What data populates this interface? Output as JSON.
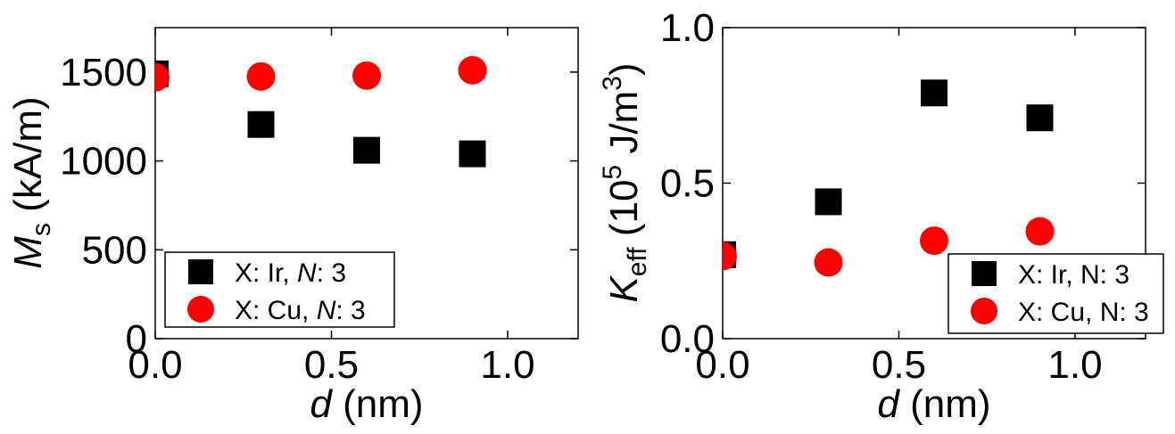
{
  "chart_data": [
    {
      "type": "scatter",
      "xlabel": {
        "italic": "d",
        "rest": " (nm)"
      },
      "ylabel": {
        "main": "M",
        "sub": "s",
        "rest": " (kA/m)"
      },
      "xlim": [
        0,
        1.2
      ],
      "ylim": [
        0,
        1750
      ],
      "xticks": [
        {
          "value": 0.0,
          "label": "0.0"
        },
        {
          "value": 0.5,
          "label": "0.5"
        },
        {
          "value": 1.0,
          "label": "1.0"
        }
      ],
      "yticks": [
        {
          "value": 0,
          "label": "0"
        },
        {
          "value": 500,
          "label": "500"
        },
        {
          "value": 1000,
          "label": "1000"
        },
        {
          "value": 1500,
          "label": "1500"
        }
      ],
      "legend_position": "bottom-left",
      "series": [
        {
          "legend": [
            {
              "text": "X: Ir, ",
              "italic": false
            },
            {
              "text": "N",
              "italic": true
            },
            {
              "text": ": 3",
              "italic": false
            }
          ],
          "marker": "square",
          "color": "#000000",
          "x": [
            0.0,
            0.3,
            0.6,
            0.9
          ],
          "y": [
            1490,
            1205,
            1060,
            1040
          ]
        },
        {
          "legend": [
            {
              "text": "X: Cu, ",
              "italic": false
            },
            {
              "text": "N",
              "italic": true
            },
            {
              "text": ": 3",
              "italic": false
            }
          ],
          "marker": "circle",
          "color": "#ff0000",
          "x": [
            0.0,
            0.3,
            0.6,
            0.9
          ],
          "y": [
            1470,
            1475,
            1480,
            1510
          ]
        }
      ]
    },
    {
      "type": "scatter",
      "xlabel": {
        "italic": "d",
        "rest": " (nm)"
      },
      "ylabel": {
        "main": "K",
        "sub": "eff",
        "rest1": " (10",
        "sup1": "5",
        "rest2": " J/m",
        "sup2": "3",
        "rest3": ")"
      },
      "xlim": [
        0,
        1.2
      ],
      "ylim": [
        0,
        1.0
      ],
      "xticks": [
        {
          "value": 0.0,
          "label": "0.0"
        },
        {
          "value": 0.5,
          "label": "0.5"
        },
        {
          "value": 1.0,
          "label": "1.0"
        }
      ],
      "yticks": [
        {
          "value": 0.0,
          "label": "0.0"
        },
        {
          "value": 0.5,
          "label": "0.5"
        },
        {
          "value": 1.0,
          "label": "1.0"
        }
      ],
      "legend_position": "bottom-right",
      "series": [
        {
          "legend": [
            {
              "text": "X: Ir, N: 3",
              "italic": false
            }
          ],
          "marker": "square",
          "color": "#000000",
          "x": [
            0.0,
            0.3,
            0.6,
            0.9
          ],
          "y": [
            0.27,
            0.44,
            0.79,
            0.71
          ]
        },
        {
          "legend": [
            {
              "text": "X: Cu, N: 3",
              "italic": false
            }
          ],
          "marker": "circle",
          "color": "#ff0000",
          "x": [
            0.0,
            0.3,
            0.6,
            0.9
          ],
          "y": [
            0.265,
            0.245,
            0.315,
            0.345
          ]
        }
      ]
    }
  ]
}
